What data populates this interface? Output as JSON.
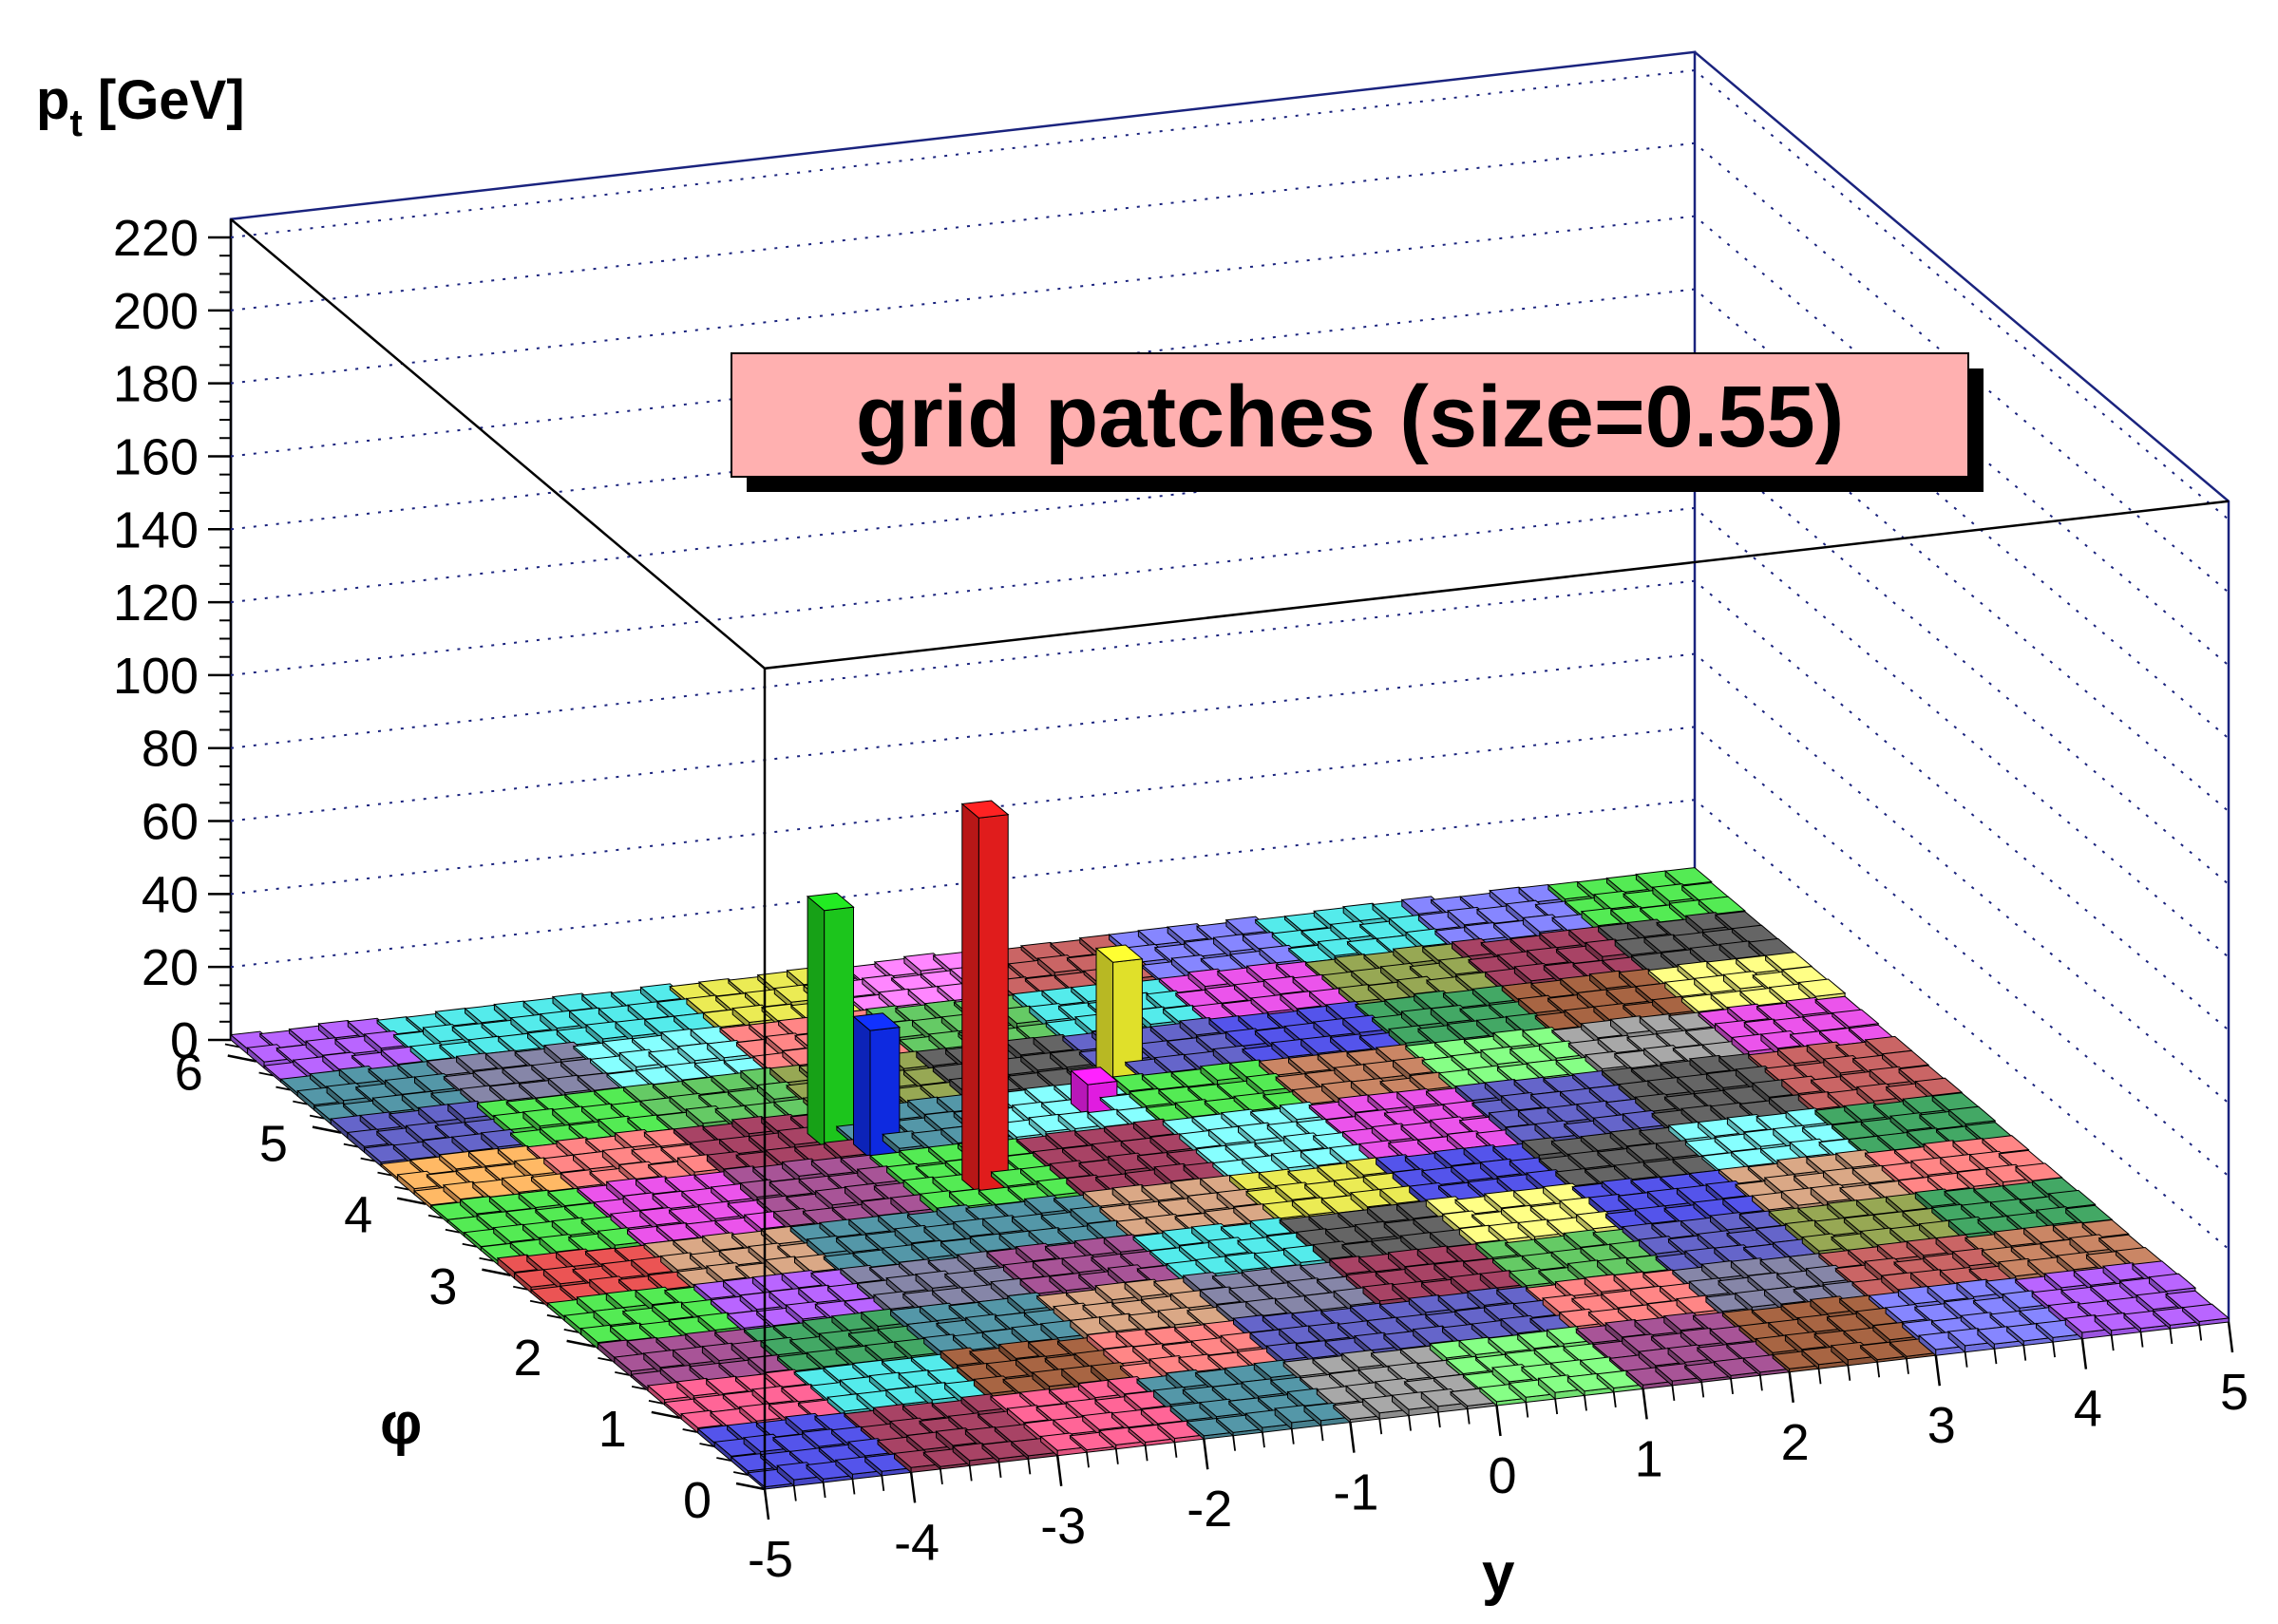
{
  "chart_data": {
    "type": "lego3d",
    "title_box": "grid patches (size=0.55)",
    "title_box_color": "#ffb0b0",
    "zlabel": "p",
    "zlabel_sub": "t",
    "zlabel_unit": " [GeV]",
    "xlabel": "y",
    "ylabel": "φ",
    "xlim": [
      -5,
      5
    ],
    "ylim": [
      0,
      6.3
    ],
    "zlim": [
      0,
      225
    ],
    "x_ticks": [
      -5,
      -4,
      -3,
      -2,
      -1,
      0,
      1,
      2,
      3,
      4,
      5
    ],
    "y_ticks": [
      0,
      1,
      2,
      3,
      4,
      5,
      6
    ],
    "z_ticks": [
      0,
      20,
      40,
      60,
      80,
      100,
      120,
      140,
      160,
      180,
      200,
      220
    ],
    "grid": "dotted",
    "cells_x": 50,
    "cells_y": 32,
    "patch_size": 0.55,
    "tall_bars": [
      {
        "x": -1.6,
        "y": 3.5,
        "value": 103,
        "color": "#ff2020"
      },
      {
        "x": -2.1,
        "y": 4.2,
        "value": 65,
        "color": "#20e020"
      },
      {
        "x": -1.9,
        "y": 4.1,
        "value": 35,
        "color": "#1030ff"
      },
      {
        "x": 0.1,
        "y": 4.6,
        "value": 33,
        "color": "#ffff30"
      },
      {
        "x": -0.2,
        "y": 4.3,
        "value": 9,
        "color": "#ff20ff"
      }
    ],
    "palette": [
      "#e05050",
      "#50e050",
      "#5050e0",
      "#e0e050",
      "#e050e0",
      "#50e0e0",
      "#a06040",
      "#8080a0",
      "#40a060",
      "#a04060",
      "#ff8080",
      "#80ff80",
      "#8080ff",
      "#ffff80",
      "#ff80ff",
      "#80ffff",
      "#c08060",
      "#6060c0",
      "#60c060",
      "#c06060",
      "#a0a0a0",
      "#606060",
      "#ffb060",
      "#b060ff",
      "#60ffb0",
      "#ff6090",
      "#90a050",
      "#5090a0",
      "#a05090",
      "#d0a080"
    ]
  }
}
